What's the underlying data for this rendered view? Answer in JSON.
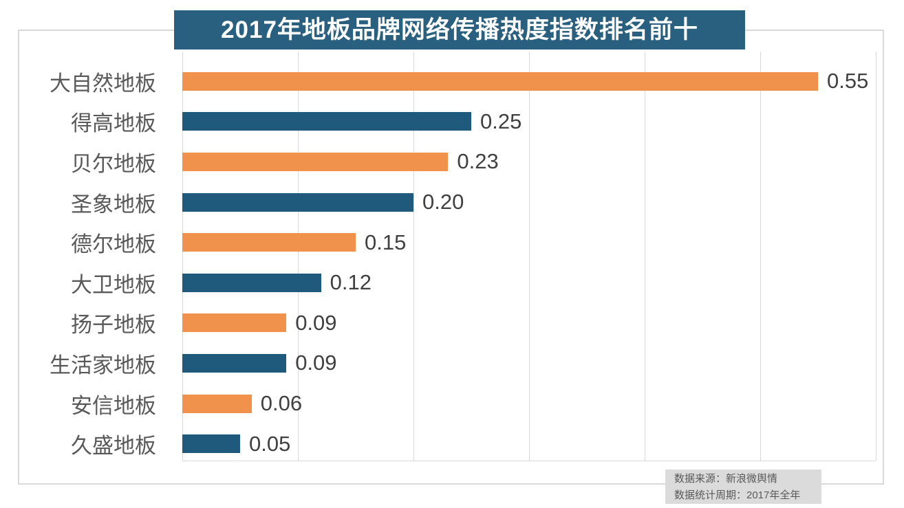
{
  "title": "2017年地板品牌网络传播热度指数排名前十",
  "chart_data": {
    "type": "bar",
    "orientation": "horizontal",
    "title": "2017年地板品牌网络传播热度指数排名前十",
    "categories": [
      "大自然地板",
      "得高地板",
      "贝尔地板",
      "圣象地板",
      "德尔地板",
      "大卫地板",
      "扬子地板",
      "生活家地板",
      "安信地板",
      "久盛地板"
    ],
    "values": [
      0.55,
      0.25,
      0.23,
      0.2,
      0.15,
      0.12,
      0.09,
      0.09,
      0.06,
      0.05
    ],
    "value_labels": [
      "0.55",
      "0.25",
      "0.23",
      "0.20",
      "0.15",
      "0.12",
      "0.09",
      "0.09",
      "0.06",
      "0.05"
    ],
    "xlim": [
      0,
      0.6
    ],
    "gridline_interval": 0.1,
    "grid": true,
    "legend": "none",
    "bar_palette_alternating": [
      "#F0914C",
      "#1F5A7C"
    ]
  },
  "footer": {
    "line1": "数据来源：新浪微舆情",
    "line2": "数据统计周期：2017年全年"
  },
  "colors": {
    "title_bg": "#2A607F",
    "bar_orange": "#F0914C",
    "bar_blue": "#1F5A7C",
    "category_text": "#595959",
    "value_text": "#404040",
    "gridline": "#D9D9D9",
    "frame_border": "#D9D9D9",
    "footer_bg": "#DBDBDB",
    "footer_text": "#595959"
  }
}
